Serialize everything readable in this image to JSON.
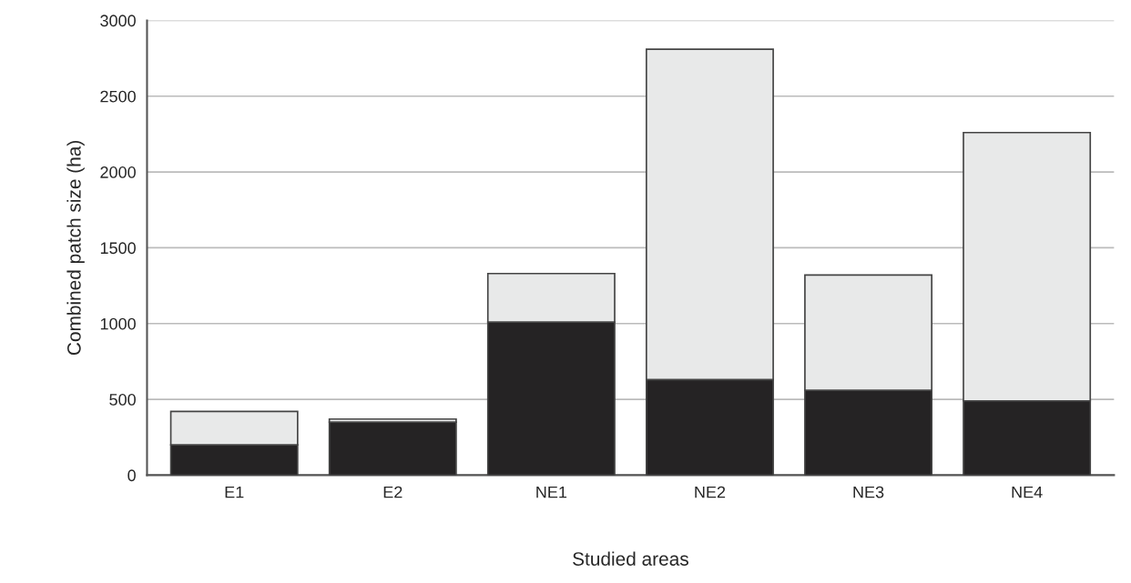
{
  "chart_data": {
    "type": "bar",
    "stacked": true,
    "xlabel": "Studied areas",
    "ylabel": "Combined patch size (ha)",
    "categories": [
      "E1",
      "E2",
      "NE1",
      "NE2",
      "NE3",
      "NE4"
    ],
    "series": [
      {
        "color": "#252324",
        "values": [
          200,
          350,
          1010,
          630,
          560,
          490
        ]
      },
      {
        "color": "#e8e9e9",
        "values": [
          220,
          20,
          320,
          2180,
          760,
          1770
        ]
      }
    ],
    "ylim": [
      0,
      3000
    ],
    "yticks": [
      0,
      500,
      1000,
      1500,
      2000,
      2500,
      3000
    ],
    "grid": "y"
  }
}
